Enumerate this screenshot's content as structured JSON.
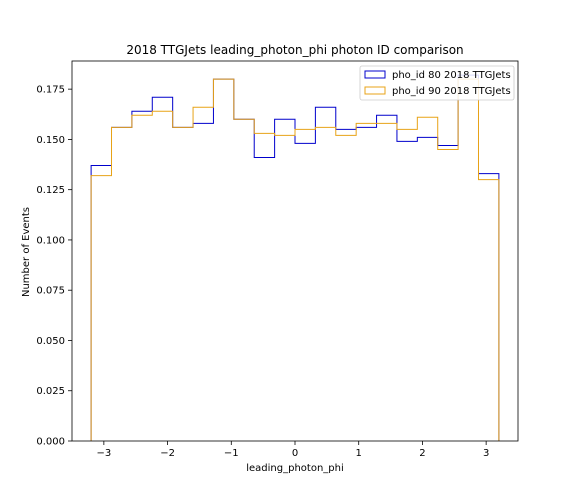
{
  "chart_data": {
    "type": "histogram-step",
    "title": "2018 TTGJets leading_photon_phi photon ID comparison",
    "xlabel": "leading_photon_phi",
    "ylabel": "Number of Events",
    "xlim": [
      -3.5,
      3.5
    ],
    "ylim": [
      0,
      0.189
    ],
    "xticks": [
      -3,
      -2,
      -1,
      0,
      1,
      2,
      3
    ],
    "xtick_labels": [
      "−3",
      "−2",
      "−1",
      "0",
      "1",
      "2",
      "3"
    ],
    "yticks": [
      0.0,
      0.025,
      0.05,
      0.075,
      0.1,
      0.125,
      0.15,
      0.175
    ],
    "ytick_labels": [
      "0.000",
      "0.025",
      "0.050",
      "0.075",
      "0.100",
      "0.125",
      "0.150",
      "0.175"
    ],
    "bin_edges": [
      -3.2,
      -2.88,
      -2.56,
      -2.24,
      -1.92,
      -1.6,
      -1.28,
      -0.96,
      -0.64,
      -0.32,
      0.0,
      0.32,
      0.64,
      0.96,
      1.28,
      1.6,
      1.92,
      2.24,
      2.56,
      2.88,
      3.2
    ],
    "series": [
      {
        "name": "pho_id 80 2018 TTGJets",
        "color": "#0000cc",
        "values": [
          0.137,
          0.156,
          0.164,
          0.171,
          0.156,
          0.158,
          0.18,
          0.16,
          0.141,
          0.16,
          0.148,
          0.166,
          0.155,
          0.156,
          0.162,
          0.149,
          0.151,
          0.147,
          0.182,
          0.133
        ]
      },
      {
        "name": "pho_id 90 2018 TTGJets",
        "color": "#e8a317",
        "values": [
          0.132,
          0.156,
          0.162,
          0.164,
          0.156,
          0.166,
          0.18,
          0.16,
          0.153,
          0.152,
          0.155,
          0.156,
          0.152,
          0.158,
          0.158,
          0.155,
          0.161,
          0.145,
          0.18,
          0.13
        ]
      }
    ],
    "legend_position": "top-right"
  }
}
